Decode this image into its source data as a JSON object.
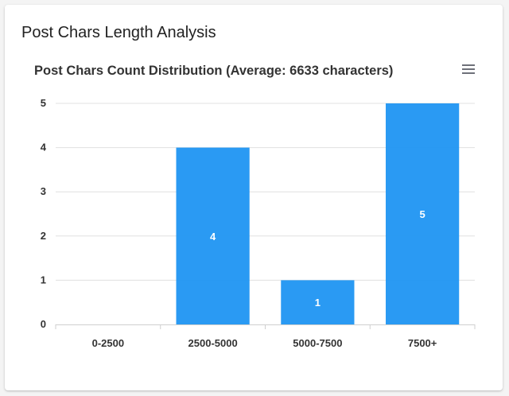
{
  "card": {
    "title": "Post Chars Length Analysis"
  },
  "toolbar": {
    "menu_icon": "hamburger-menu-icon"
  },
  "colors": {
    "bar": "#2196f3",
    "grid": "#e0e0e0",
    "axis": "#cfcfcf",
    "text": "#333333"
  },
  "chart_data": {
    "type": "bar",
    "title": "Post Chars Count Distribution (Average: 6633 characters)",
    "categories": [
      "0-2500",
      "2500-5000",
      "5000-7500",
      "7500+"
    ],
    "values": [
      0,
      4,
      1,
      5
    ],
    "ylim": [
      0,
      5
    ],
    "yticks": [
      "0",
      "1",
      "2",
      "3",
      "4",
      "5"
    ],
    "xlabel": "",
    "ylabel": "",
    "grid": true,
    "data_labels": true
  }
}
